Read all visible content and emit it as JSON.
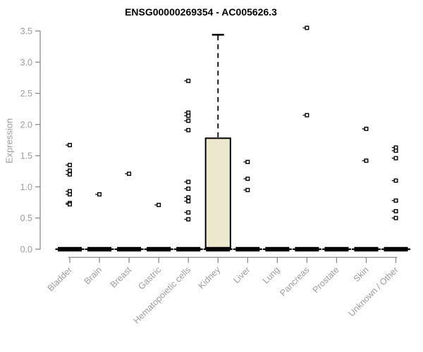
{
  "chart_data": {
    "type": "boxplot",
    "title": "ENSG00000269354 - AC005626.3",
    "ylabel": "Expression",
    "ylim": [
      0.0,
      3.5
    ],
    "grid": false,
    "legend": "none",
    "yticks": [
      {
        "label": "0.0",
        "value": 0.0
      },
      {
        "label": "0.5",
        "value": 0.5
      },
      {
        "label": "1.0",
        "value": 1.0
      },
      {
        "label": "1.5",
        "value": 1.5
      },
      {
        "label": "2.0",
        "value": 2.0
      },
      {
        "label": "2.5",
        "value": 2.5
      },
      {
        "label": "3.0",
        "value": 3.0
      },
      {
        "label": "3.5",
        "value": 3.5
      }
    ],
    "categories": [
      "Bladder",
      "Brain",
      "Breast",
      "Gastric",
      "Hematopoietic cells",
      "Kidney",
      "Liver",
      "Lung",
      "Pancreas",
      "Prostate",
      "Skin",
      "Unknown / Other"
    ],
    "collapsed_box_value": 0.0,
    "boxes": [
      {
        "category": "Kidney",
        "q1": 0.0,
        "median": 0.02,
        "q3": 1.78,
        "whisker_low": 0.0,
        "whisker_high": 3.44
      }
    ],
    "points": [
      {
        "category": "Bladder",
        "values": [
          1.67,
          1.35,
          1.26,
          1.2,
          0.93,
          0.88,
          0.74,
          0.72
        ]
      },
      {
        "category": "Brain",
        "values": [
          0.88
        ]
      },
      {
        "category": "Breast",
        "values": [
          1.21
        ]
      },
      {
        "category": "Gastric",
        "values": [
          0.71
        ]
      },
      {
        "category": "Hematopoietic cells",
        "values": [
          2.7,
          2.19,
          2.14,
          2.06,
          1.91,
          1.08,
          0.97,
          0.83,
          0.77,
          0.59,
          0.48
        ]
      },
      {
        "category": "Kidney",
        "values": []
      },
      {
        "category": "Liver",
        "values": [
          1.4,
          1.13,
          0.95
        ]
      },
      {
        "category": "Lung",
        "values": []
      },
      {
        "category": "Pancreas",
        "values": [
          3.55,
          2.15
        ]
      },
      {
        "category": "Prostate",
        "values": []
      },
      {
        "category": "Skin",
        "values": [
          1.93,
          1.42
        ]
      },
      {
        "category": "Unknown / Other",
        "values": [
          1.63,
          1.58,
          1.46,
          1.1,
          0.78,
          0.61,
          0.5
        ]
      }
    ],
    "colors": {
      "box_fill": "#ece8cd",
      "box_stroke": "#000000",
      "point_stroke": "#000000",
      "axis": "#8a8a8a",
      "tick_label": "#9c9c9c",
      "title": "#000000"
    }
  }
}
